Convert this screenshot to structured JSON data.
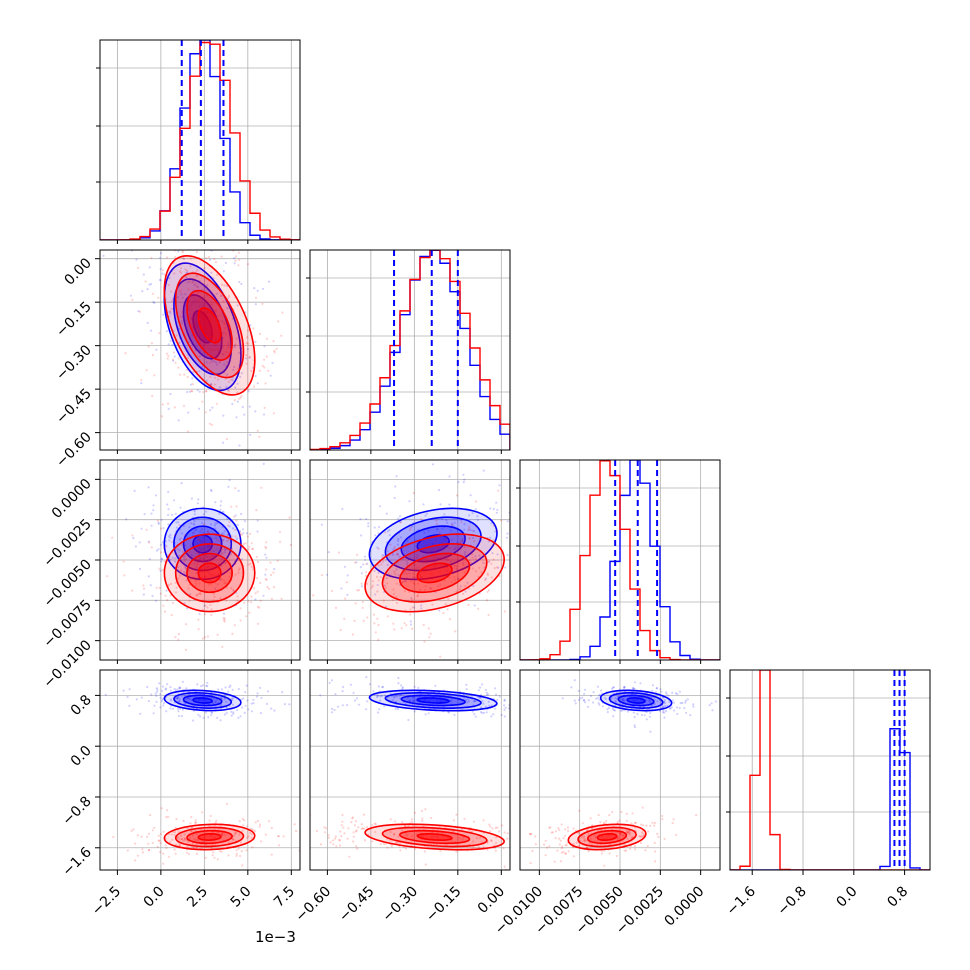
{
  "colors": {
    "series_a": "#0000ff",
    "series_b": "#ff0000",
    "grid": "#b0b0b0",
    "frame": "#000000"
  },
  "axis_multiplier": "1e−3",
  "chart_data": {
    "type": "corner",
    "parameters": 4,
    "series": [
      {
        "color": "#0000ff",
        "means": [
          2.4,
          -0.235,
          -0.004,
          0.72
        ],
        "stds": [
          1.1,
          0.11,
          0.0011,
          0.08
        ],
        "correlations": [
          [
            0,
            1,
            -0.45
          ],
          [
            1,
            2,
            0.3
          ],
          [
            0,
            3,
            -0.2
          ],
          [
            1,
            3,
            -0.3
          ],
          [
            2,
            3,
            -0.25
          ]
        ],
        "quantile_lines": [
          [
            1.2,
            2.3,
            3.6
          ],
          [
            -0.37,
            -0.24,
            -0.15
          ],
          [
            -0.0053,
            -0.0039,
            -0.0027
          ],
          [
            0.64,
            0.72,
            0.8
          ]
        ]
      },
      {
        "color": "#ff0000",
        "means": [
          2.8,
          -0.23,
          -0.0058,
          -1.43
        ],
        "stds": [
          1.3,
          0.12,
          0.0012,
          0.1
        ],
        "correlations": [
          [
            0,
            1,
            -0.5
          ],
          [
            1,
            2,
            0.35
          ],
          [
            0,
            3,
            0.1
          ],
          [
            1,
            3,
            -0.35
          ],
          [
            2,
            3,
            0.25
          ]
        ]
      }
    ],
    "axes": [
      {
        "range": [
          -3.5,
          8.0
        ],
        "ticks": [
          -2.5,
          0.0,
          2.5,
          5.0,
          7.5
        ],
        "tick_labels": [
          "−2.5",
          "0.0",
          "2.5",
          "5.0",
          "7.5"
        ]
      },
      {
        "range": [
          -0.66,
          0.03
        ],
        "ticks": [
          -0.6,
          -0.45,
          -0.3,
          -0.15,
          0.0
        ],
        "tick_labels": [
          "−0.60",
          "−0.45",
          "−0.30",
          "−0.15",
          "0.00"
        ]
      },
      {
        "range": [
          -0.0112,
          0.0012
        ],
        "ticks": [
          -0.01,
          -0.0075,
          -0.005,
          -0.0025,
          0.0
        ],
        "tick_labels": [
          "−0.0100",
          "−0.0075",
          "−0.0050",
          "−0.0025",
          "0.0000"
        ]
      },
      {
        "range": [
          -1.95,
          1.2
        ],
        "ticks": [
          -1.6,
          -0.8,
          0.0,
          0.8
        ],
        "tick_labels": [
          "−1.6",
          "−0.8",
          "0.0",
          "0.8"
        ]
      }
    ],
    "grid": true,
    "contour_levels_sigma": [
      0.5,
      1.0,
      1.5,
      2.0
    ]
  }
}
